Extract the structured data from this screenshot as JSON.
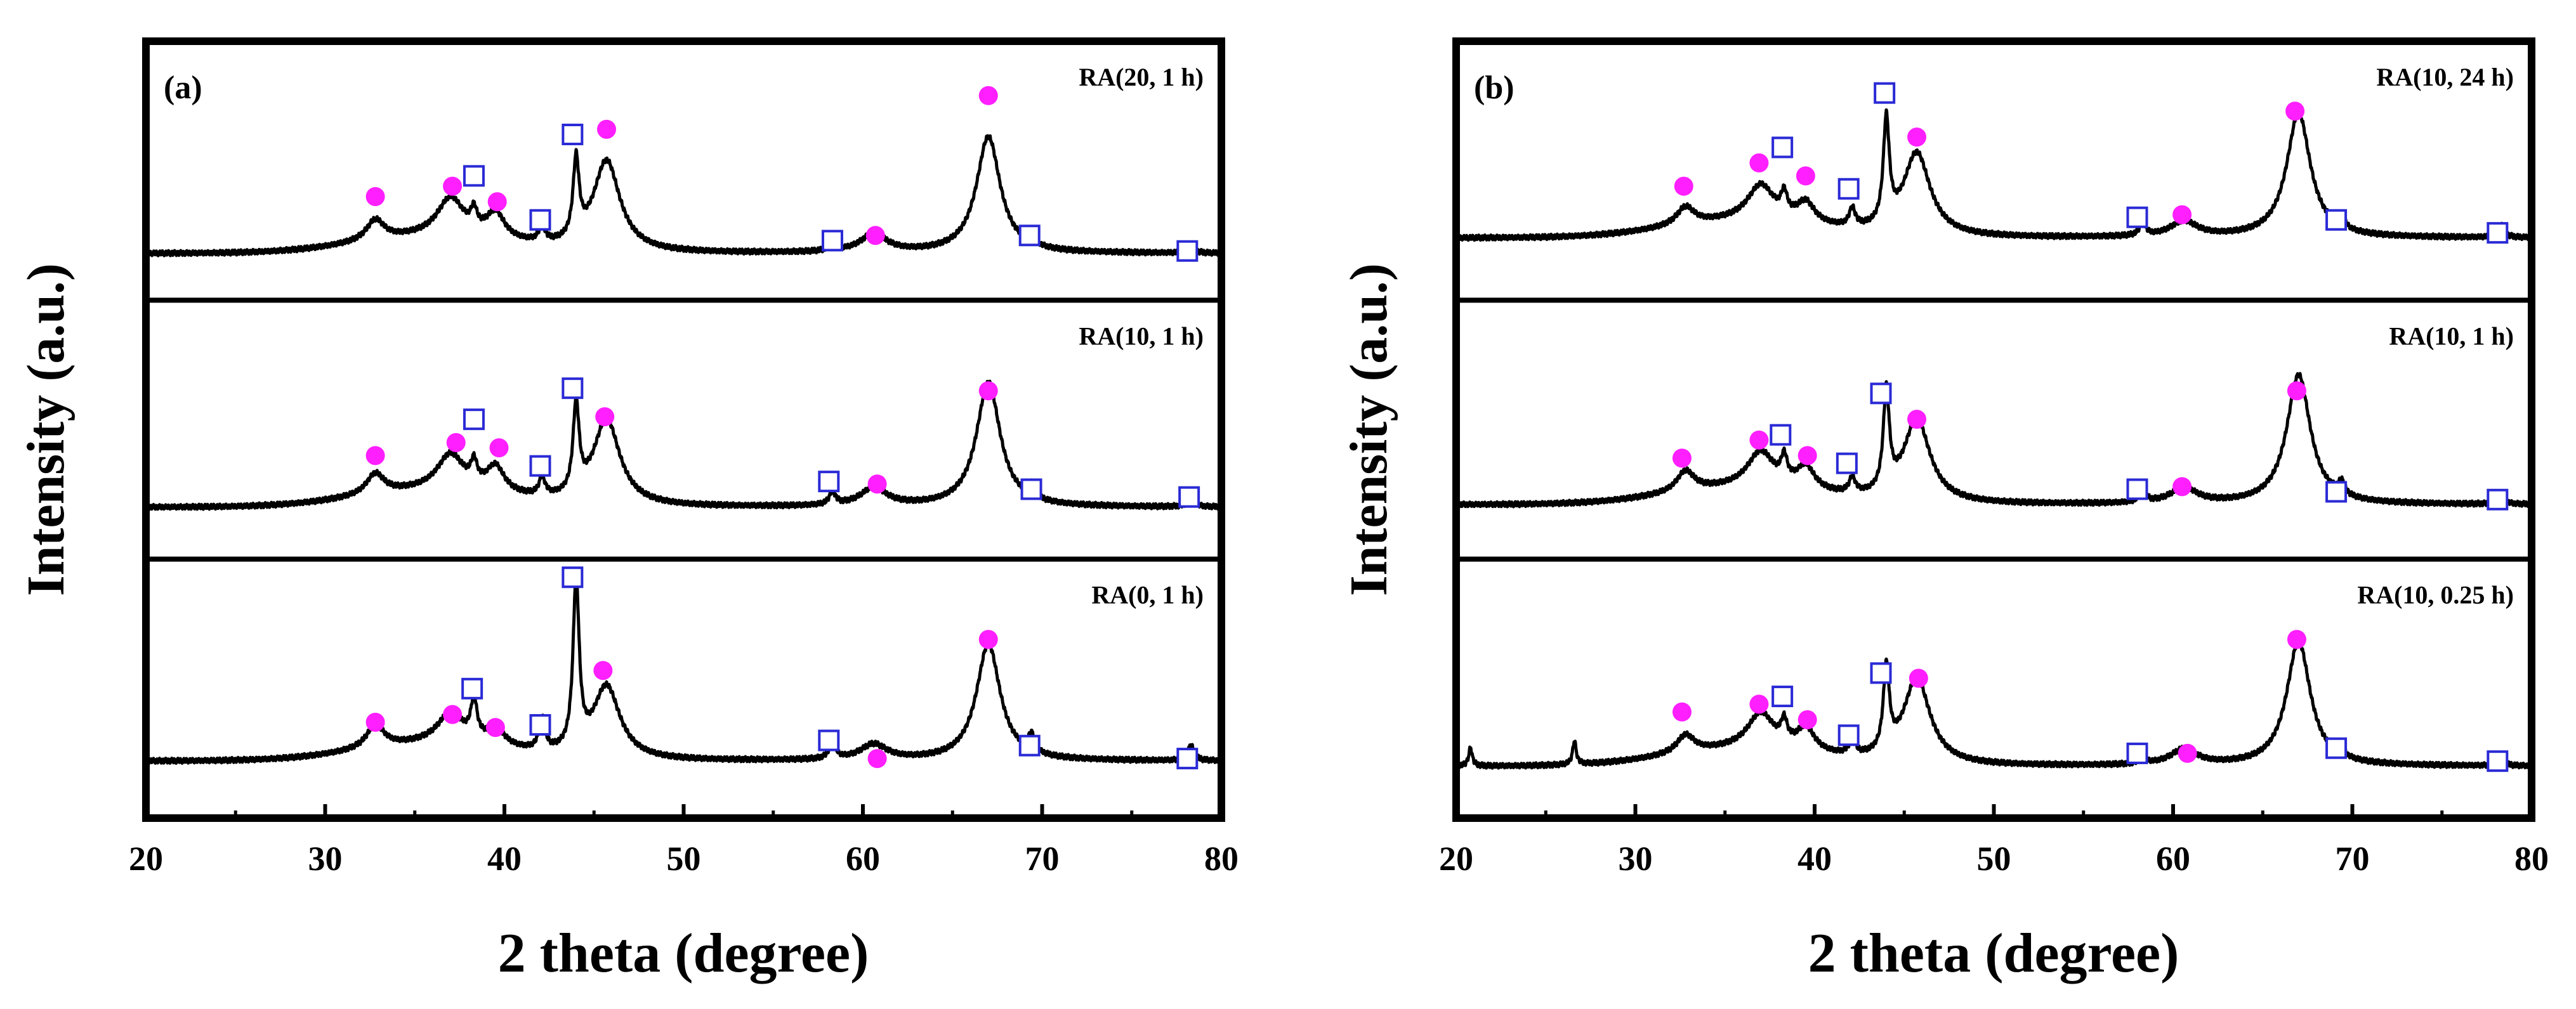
{
  "colors": {
    "axis": "#000000",
    "trace": "#000000",
    "circle_marker": "#ff1fff",
    "square_marker": "#2a2ad6"
  },
  "chart_data": [
    {
      "type": "line",
      "panel_label": "(a)",
      "xlabel": "2 theta (degree)",
      "ylabel": "Intensity (a.u.)",
      "xlim": [
        20,
        80
      ],
      "xticks": [
        20,
        30,
        40,
        50,
        60,
        70,
        80
      ],
      "y_ticks_shown": false,
      "stacked_subpanels": [
        {
          "name": "RA(20, 1 h)",
          "baseline": 0.18,
          "hump": {
            "center": 36,
            "width": 6,
            "height": 0.06
          },
          "peaks": [
            {
              "pos": 32.8,
              "h": 0.08,
              "w": 0.6
            },
            {
              "pos": 37.0,
              "h": 0.15,
              "w": 0.9
            },
            {
              "pos": 38.3,
              "h": 0.07,
              "w": 0.2
            },
            {
              "pos": 39.5,
              "h": 0.1,
              "w": 0.6
            },
            {
              "pos": 42.1,
              "h": 0.06,
              "w": 0.2
            },
            {
              "pos": 44.0,
              "h": 0.3,
              "w": 0.2
            },
            {
              "pos": 45.7,
              "h": 0.35,
              "w": 0.9
            },
            {
              "pos": 58.3,
              "h": 0.04,
              "w": 0.2
            },
            {
              "pos": 60.6,
              "h": 0.07,
              "w": 0.9
            },
            {
              "pos": 67.0,
              "h": 0.45,
              "w": 0.8
            },
            {
              "pos": 69.4,
              "h": 0.04,
              "w": 0.2
            },
            {
              "pos": 78.3,
              "h": 0.03,
              "w": 0.2
            }
          ],
          "circle_markers": [
            {
              "x": 32.8,
              "y": 0.4
            },
            {
              "x": 37.1,
              "y": 0.44
            },
            {
              "x": 39.6,
              "y": 0.38
            },
            {
              "x": 45.7,
              "y": 0.66
            },
            {
              "x": 60.7,
              "y": 0.25
            },
            {
              "x": 67.0,
              "y": 0.79
            }
          ],
          "square_markers": [
            {
              "x": 38.3,
              "y": 0.48
            },
            {
              "x": 42.0,
              "y": 0.31
            },
            {
              "x": 43.8,
              "y": 0.64
            },
            {
              "x": 58.3,
              "y": 0.23
            },
            {
              "x": 69.3,
              "y": 0.25
            },
            {
              "x": 78.1,
              "y": 0.19
            }
          ]
        },
        {
          "name": "RA(10, 1 h)",
          "baseline": 0.2,
          "hump": {
            "center": 36,
            "width": 6,
            "height": 0.06
          },
          "peaks": [
            {
              "pos": 32.8,
              "h": 0.08,
              "w": 0.6
            },
            {
              "pos": 37.0,
              "h": 0.14,
              "w": 0.9
            },
            {
              "pos": 38.3,
              "h": 0.08,
              "w": 0.2
            },
            {
              "pos": 39.5,
              "h": 0.1,
              "w": 0.6
            },
            {
              "pos": 42.1,
              "h": 0.07,
              "w": 0.2
            },
            {
              "pos": 44.0,
              "h": 0.34,
              "w": 0.2
            },
            {
              "pos": 45.7,
              "h": 0.33,
              "w": 0.9
            },
            {
              "pos": 58.3,
              "h": 0.05,
              "w": 0.2
            },
            {
              "pos": 60.6,
              "h": 0.07,
              "w": 0.9
            },
            {
              "pos": 67.0,
              "h": 0.48,
              "w": 0.8
            },
            {
              "pos": 69.4,
              "h": 0.05,
              "w": 0.2
            },
            {
              "pos": 78.3,
              "h": 0.04,
              "w": 0.2
            }
          ],
          "circle_markers": [
            {
              "x": 32.8,
              "y": 0.4
            },
            {
              "x": 37.3,
              "y": 0.45
            },
            {
              "x": 39.7,
              "y": 0.43
            },
            {
              "x": 45.6,
              "y": 0.55
            },
            {
              "x": 60.8,
              "y": 0.29
            },
            {
              "x": 67.0,
              "y": 0.65
            }
          ],
          "square_markers": [
            {
              "x": 38.3,
              "y": 0.54
            },
            {
              "x": 42.0,
              "y": 0.36
            },
            {
              "x": 43.8,
              "y": 0.66
            },
            {
              "x": 58.1,
              "y": 0.3
            },
            {
              "x": 69.4,
              "y": 0.27
            },
            {
              "x": 78.2,
              "y": 0.24
            }
          ]
        },
        {
          "name": "RA(0, 1 h)",
          "baseline": 0.22,
          "hump": {
            "center": 36,
            "width": 6,
            "height": 0.06
          },
          "peaks": [
            {
              "pos": 32.8,
              "h": 0.09,
              "w": 0.6
            },
            {
              "pos": 37.0,
              "h": 0.12,
              "w": 0.9
            },
            {
              "pos": 38.3,
              "h": 0.15,
              "w": 0.2
            },
            {
              "pos": 39.5,
              "h": 0.07,
              "w": 0.6
            },
            {
              "pos": 42.1,
              "h": 0.12,
              "w": 0.2
            },
            {
              "pos": 44.0,
              "h": 0.65,
              "w": 0.2
            },
            {
              "pos": 45.7,
              "h": 0.28,
              "w": 0.9
            },
            {
              "pos": 58.3,
              "h": 0.07,
              "w": 0.2
            },
            {
              "pos": 60.6,
              "h": 0.06,
              "w": 0.9
            },
            {
              "pos": 67.0,
              "h": 0.45,
              "w": 0.8
            },
            {
              "pos": 69.4,
              "h": 0.07,
              "w": 0.2
            },
            {
              "pos": 78.3,
              "h": 0.06,
              "w": 0.2
            }
          ],
          "circle_markers": [
            {
              "x": 32.8,
              "y": 0.37
            },
            {
              "x": 37.1,
              "y": 0.4
            },
            {
              "x": 39.5,
              "y": 0.35
            },
            {
              "x": 45.5,
              "y": 0.57
            },
            {
              "x": 60.8,
              "y": 0.23
            },
            {
              "x": 67.0,
              "y": 0.69
            }
          ],
          "square_markers": [
            {
              "x": 38.2,
              "y": 0.5
            },
            {
              "x": 42.0,
              "y": 0.36
            },
            {
              "x": 43.8,
              "y": 0.93
            },
            {
              "x": 58.1,
              "y": 0.3
            },
            {
              "x": 69.3,
              "y": 0.28
            },
            {
              "x": 78.1,
              "y": 0.23
            }
          ]
        }
      ]
    },
    {
      "type": "line",
      "panel_label": "(b)",
      "xlabel": "2 theta (degree)",
      "ylabel": "Intensity (a.u.)",
      "xlim": [
        20,
        80
      ],
      "xticks": [
        20,
        30,
        40,
        50,
        60,
        70,
        80
      ],
      "y_ticks_shown": false,
      "stacked_subpanels": [
        {
          "name": "RA(10, 24 h)",
          "baseline": 0.24,
          "hump": {
            "center": 36,
            "width": 6,
            "height": 0.06
          },
          "peaks": [
            {
              "pos": 32.8,
              "h": 0.07,
              "w": 0.6
            },
            {
              "pos": 37.0,
              "h": 0.14,
              "w": 0.9
            },
            {
              "pos": 38.3,
              "h": 0.08,
              "w": 0.2
            },
            {
              "pos": 39.5,
              "h": 0.08,
              "w": 0.6
            },
            {
              "pos": 42.1,
              "h": 0.07,
              "w": 0.2
            },
            {
              "pos": 44.0,
              "h": 0.4,
              "w": 0.2
            },
            {
              "pos": 45.7,
              "h": 0.32,
              "w": 0.9
            },
            {
              "pos": 58.3,
              "h": 0.05,
              "w": 0.2
            },
            {
              "pos": 60.6,
              "h": 0.06,
              "w": 0.9
            },
            {
              "pos": 67.0,
              "h": 0.48,
              "w": 0.8
            },
            {
              "pos": 69.4,
              "h": 0.05,
              "w": 0.2
            },
            {
              "pos": 78.3,
              "h": 0.05,
              "w": 0.2
            }
          ],
          "circle_markers": [
            {
              "x": 32.7,
              "y": 0.44
            },
            {
              "x": 36.9,
              "y": 0.53
            },
            {
              "x": 39.5,
              "y": 0.48
            },
            {
              "x": 45.7,
              "y": 0.63
            },
            {
              "x": 60.5,
              "y": 0.33
            },
            {
              "x": 66.8,
              "y": 0.73
            }
          ],
          "square_markers": [
            {
              "x": 38.2,
              "y": 0.59
            },
            {
              "x": 41.9,
              "y": 0.43
            },
            {
              "x": 43.9,
              "y": 0.8
            },
            {
              "x": 58.0,
              "y": 0.32
            },
            {
              "x": 69.1,
              "y": 0.31
            },
            {
              "x": 78.1,
              "y": 0.26
            }
          ]
        },
        {
          "name": "RA(10, 1 h)",
          "baseline": 0.21,
          "hump": {
            "center": 36,
            "width": 6,
            "height": 0.06
          },
          "peaks": [
            {
              "pos": 32.8,
              "h": 0.08,
              "w": 0.6
            },
            {
              "pos": 37.0,
              "h": 0.14,
              "w": 0.9
            },
            {
              "pos": 38.3,
              "h": 0.09,
              "w": 0.2
            },
            {
              "pos": 39.5,
              "h": 0.09,
              "w": 0.6
            },
            {
              "pos": 42.1,
              "h": 0.06,
              "w": 0.2
            },
            {
              "pos": 44.0,
              "h": 0.38,
              "w": 0.2
            },
            {
              "pos": 45.7,
              "h": 0.32,
              "w": 0.9
            },
            {
              "pos": 58.3,
              "h": 0.05,
              "w": 0.2
            },
            {
              "pos": 60.6,
              "h": 0.06,
              "w": 0.9
            },
            {
              "pos": 67.0,
              "h": 0.5,
              "w": 0.8
            },
            {
              "pos": 69.4,
              "h": 0.05,
              "w": 0.2
            },
            {
              "pos": 78.3,
              "h": 0.04,
              "w": 0.2
            }
          ],
          "circle_markers": [
            {
              "x": 32.6,
              "y": 0.39
            },
            {
              "x": 36.9,
              "y": 0.46
            },
            {
              "x": 39.6,
              "y": 0.4
            },
            {
              "x": 45.7,
              "y": 0.54
            },
            {
              "x": 60.5,
              "y": 0.28
            },
            {
              "x": 66.9,
              "y": 0.65
            }
          ],
          "square_markers": [
            {
              "x": 38.1,
              "y": 0.48
            },
            {
              "x": 41.8,
              "y": 0.37
            },
            {
              "x": 43.7,
              "y": 0.64
            },
            {
              "x": 58.0,
              "y": 0.27
            },
            {
              "x": 69.1,
              "y": 0.26
            },
            {
              "x": 78.1,
              "y": 0.23
            }
          ]
        },
        {
          "name": "RA(10, 0.25 h)",
          "baseline": 0.2,
          "hump": {
            "center": 36,
            "width": 6,
            "height": 0.06
          },
          "peaks": [
            {
              "pos": 20.8,
              "h": 0.07,
              "w": 0.12
            },
            {
              "pos": 26.6,
              "h": 0.09,
              "w": 0.12
            },
            {
              "pos": 32.8,
              "h": 0.07,
              "w": 0.6
            },
            {
              "pos": 37.0,
              "h": 0.14,
              "w": 0.9
            },
            {
              "pos": 38.3,
              "h": 0.08,
              "w": 0.2
            },
            {
              "pos": 39.5,
              "h": 0.09,
              "w": 0.6
            },
            {
              "pos": 42.1,
              "h": 0.06,
              "w": 0.2
            },
            {
              "pos": 44.0,
              "h": 0.32,
              "w": 0.2
            },
            {
              "pos": 45.7,
              "h": 0.33,
              "w": 0.9
            },
            {
              "pos": 58.3,
              "h": 0.03,
              "w": 0.2
            },
            {
              "pos": 60.6,
              "h": 0.06,
              "w": 0.9
            },
            {
              "pos": 67.0,
              "h": 0.48,
              "w": 0.8
            },
            {
              "pos": 69.4,
              "h": 0.03,
              "w": 0.2
            },
            {
              "pos": 78.3,
              "h": 0.03,
              "w": 0.2
            }
          ],
          "circle_markers": [
            {
              "x": 32.6,
              "y": 0.41
            },
            {
              "x": 36.9,
              "y": 0.44
            },
            {
              "x": 39.6,
              "y": 0.38
            },
            {
              "x": 45.8,
              "y": 0.54
            },
            {
              "x": 60.8,
              "y": 0.25
            },
            {
              "x": 66.9,
              "y": 0.69
            }
          ],
          "square_markers": [
            {
              "x": 38.2,
              "y": 0.47
            },
            {
              "x": 41.9,
              "y": 0.32
            },
            {
              "x": 43.7,
              "y": 0.56
            },
            {
              "x": 58.0,
              "y": 0.25
            },
            {
              "x": 69.1,
              "y": 0.27
            },
            {
              "x": 78.1,
              "y": 0.22
            }
          ]
        }
      ]
    }
  ]
}
